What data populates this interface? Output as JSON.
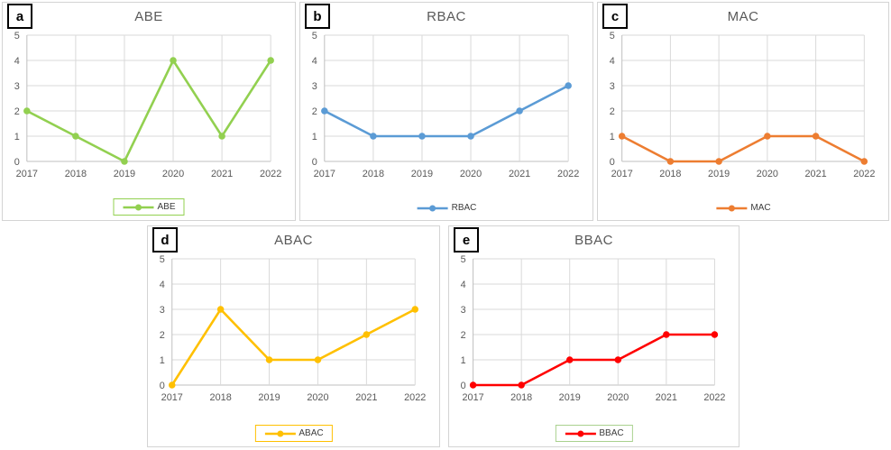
{
  "figure": {
    "background": "#ffffff",
    "grid_color": "#d9d9d9",
    "axis_color": "#bfbfbf",
    "text_color": "#595959"
  },
  "chart_data": [
    {
      "type": "line",
      "panel_label": "a",
      "title": "ABE",
      "categories": [
        "2017",
        "2018",
        "2019",
        "2020",
        "2021",
        "2022"
      ],
      "series": [
        {
          "name": "ABE",
          "values": [
            2,
            1,
            0,
            4,
            1,
            4
          ],
          "color": "#92D050"
        }
      ],
      "ylim": [
        0,
        5
      ],
      "ytick_step": 1,
      "grid": true,
      "legend_position": "bottom",
      "legend_border": "#92D050"
    },
    {
      "type": "line",
      "panel_label": "b",
      "title": "RBAC",
      "categories": [
        "2017",
        "2018",
        "2019",
        "2020",
        "2021",
        "2022"
      ],
      "series": [
        {
          "name": "RBAC",
          "values": [
            2,
            1,
            1,
            1,
            2,
            3
          ],
          "color": "#5B9BD5"
        }
      ],
      "ylim": [
        0,
        5
      ],
      "ytick_step": 1,
      "grid": true,
      "legend_position": "bottom",
      "legend_border": null
    },
    {
      "type": "line",
      "panel_label": "c",
      "title": "MAC",
      "categories": [
        "2017",
        "2018",
        "2019",
        "2020",
        "2021",
        "2022"
      ],
      "series": [
        {
          "name": "MAC",
          "values": [
            1,
            0,
            0,
            1,
            1,
            0
          ],
          "color": "#ED7D31"
        }
      ],
      "ylim": [
        0,
        5
      ],
      "ytick_step": 1,
      "grid": true,
      "legend_position": "bottom",
      "legend_border": null
    },
    {
      "type": "line",
      "panel_label": "d",
      "title": "ABAC",
      "categories": [
        "2017",
        "2018",
        "2019",
        "2020",
        "2021",
        "2022"
      ],
      "series": [
        {
          "name": "ABAC",
          "values": [
            0,
            3,
            1,
            1,
            2,
            3
          ],
          "color": "#FFC000"
        }
      ],
      "ylim": [
        0,
        5
      ],
      "ytick_step": 1,
      "grid": true,
      "legend_position": "bottom",
      "legend_border": "#FFC000"
    },
    {
      "type": "line",
      "panel_label": "e",
      "title": "BBAC",
      "categories": [
        "2017",
        "2018",
        "2019",
        "2020",
        "2021",
        "2022"
      ],
      "series": [
        {
          "name": "BBAC",
          "values": [
            0,
            0,
            1,
            1,
            2,
            2
          ],
          "color": "#FF0000"
        }
      ],
      "ylim": [
        0,
        5
      ],
      "ytick_step": 1,
      "grid": true,
      "legend_position": "bottom",
      "legend_border": "#A9D18E"
    }
  ]
}
